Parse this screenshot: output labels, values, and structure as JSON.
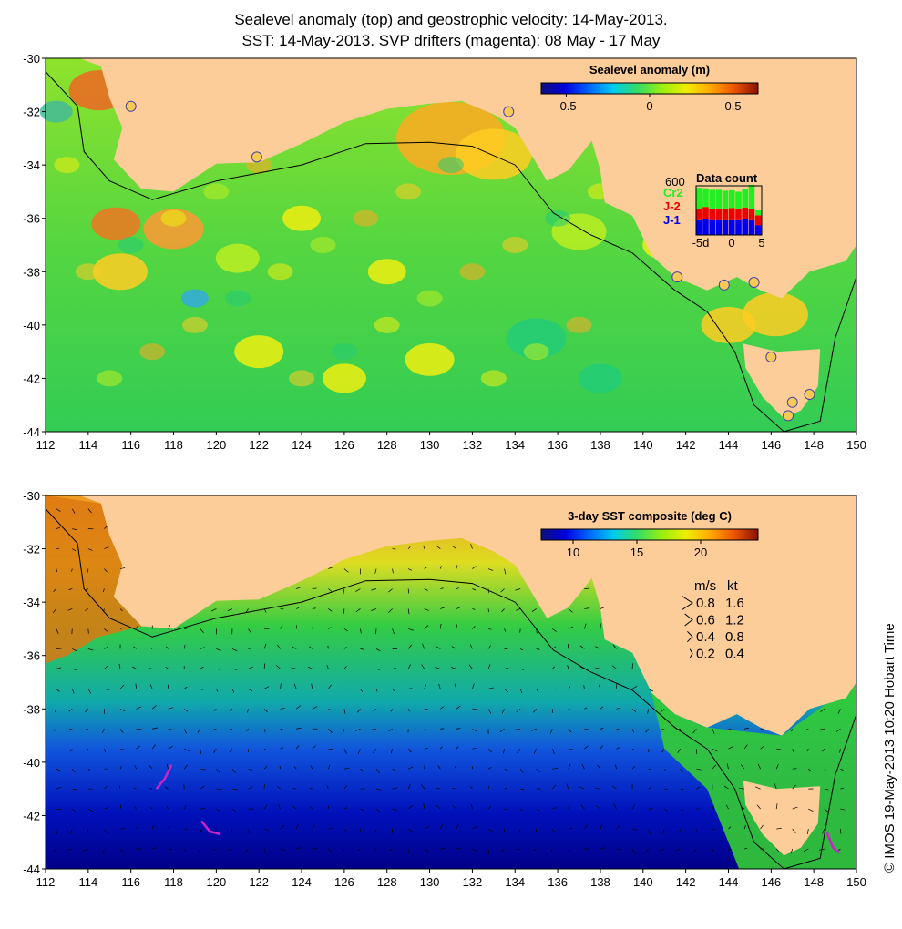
{
  "title": {
    "line1": "Sealevel anomaly (top) and geostrophic velocity: 14-May-2013.",
    "line2": "SST: 14-May-2013. SVP drifters (magenta): 08 May - 17 May"
  },
  "axes": {
    "x_ticks": [
      "112",
      "114",
      "116",
      "118",
      "120",
      "122",
      "124",
      "126",
      "128",
      "130",
      "132",
      "134",
      "136",
      "138",
      "140",
      "142",
      "144",
      "146",
      "148",
      "150"
    ],
    "y_ticks": [
      "-30",
      "-32",
      "-34",
      "-36",
      "-38",
      "-40",
      "-42",
      "-44"
    ]
  },
  "top_panel": {
    "colorbar": {
      "title": "Sealevel anomaly (m)",
      "ticks": [
        "-0.5",
        "0",
        "0.5"
      ],
      "tick_values": [
        -0.5,
        0,
        0.5
      ],
      "range": [
        -0.65,
        0.65
      ],
      "colormap": [
        "#10107a",
        "#0000e0",
        "#0066ff",
        "#00ccee",
        "#33dd66",
        "#99ee11",
        "#eeee00",
        "#ffaa00",
        "#ee5500",
        "#881100"
      ]
    },
    "data_count": {
      "title": "Data count",
      "max_label": "600",
      "labels": [
        {
          "text": "Cr2",
          "color": "#22ee22"
        },
        {
          "text": "J-2",
          "color": "#ee0000"
        },
        {
          "text": "J-1",
          "color": "#0000ee"
        }
      ],
      "x_ticks": [
        "-5d",
        "0",
        "5"
      ],
      "bars": [
        {
          "j1": 0.3,
          "j2": 0.22,
          "cr2": 0.44
        },
        {
          "j1": 0.32,
          "j2": 0.25,
          "cr2": 0.38
        },
        {
          "j1": 0.3,
          "j2": 0.22,
          "cr2": 0.4
        },
        {
          "j1": 0.3,
          "j2": 0.24,
          "cr2": 0.38
        },
        {
          "j1": 0.3,
          "j2": 0.22,
          "cr2": 0.38
        },
        {
          "j1": 0.3,
          "j2": 0.25,
          "cr2": 0.36
        },
        {
          "j1": 0.3,
          "j2": 0.22,
          "cr2": 0.36
        },
        {
          "j1": 0.32,
          "j2": 0.24,
          "cr2": 0.38
        },
        {
          "j1": 0.3,
          "j2": 0.22,
          "cr2": 0.5
        },
        {
          "j1": 0.2,
          "j2": 0.2,
          "cr2": 0.1
        }
      ]
    }
  },
  "bottom_panel": {
    "colorbar": {
      "title": "3-day SST composite (deg C)",
      "ticks": [
        "10",
        "15",
        "20"
      ],
      "tick_values": [
        10,
        15,
        20
      ],
      "range": [
        7.5,
        24.5
      ],
      "colormap": [
        "#10107a",
        "#0000e0",
        "#0066ff",
        "#00ccee",
        "#33dd66",
        "#99ee11",
        "#eeee00",
        "#ffaa00",
        "#ee5500",
        "#881100"
      ]
    },
    "velocity_legend": {
      "header_ms": "m/s",
      "header_kt": "kt",
      "rows": [
        {
          "ms": "0.8",
          "kt": "1.6"
        },
        {
          "ms": "0.6",
          "kt": "1.2"
        },
        {
          "ms": "0.4",
          "kt": "0.8"
        },
        {
          "ms": "0.2",
          "kt": "0.4"
        }
      ]
    }
  },
  "colors": {
    "land": "#fccc99",
    "drifters": "#cc22cc",
    "tide_gauge": "#f6ca55"
  },
  "tide_gauges": [
    [
      116.0,
      -31.8
    ],
    [
      121.9,
      -33.7
    ],
    [
      133.7,
      -32.0
    ],
    [
      141.6,
      -38.2
    ],
    [
      143.8,
      -38.5
    ],
    [
      145.2,
      -38.4
    ],
    [
      146.0,
      -41.2
    ],
    [
      147.0,
      -42.9
    ],
    [
      146.8,
      -43.4
    ],
    [
      147.8,
      -42.6
    ]
  ],
  "copyright": "© IMOS 19-May-2013 10:20 Hobart Time"
}
